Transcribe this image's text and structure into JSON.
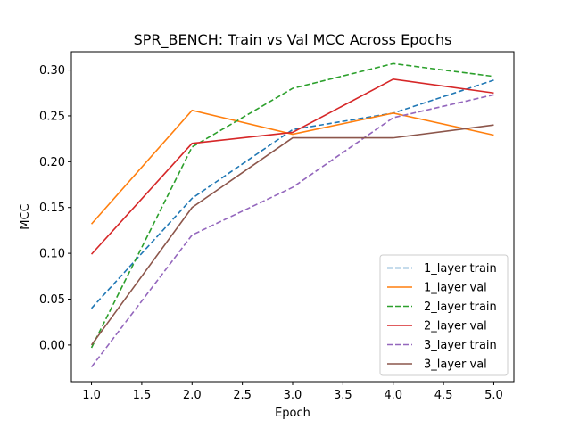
{
  "chart_data": {
    "type": "line",
    "title": "SPR_BENCH: Train vs Val MCC Across Epochs",
    "xlabel": "Epoch",
    "ylabel": "MCC",
    "x": [
      1,
      2,
      3,
      4,
      5
    ],
    "xlim": [
      0.8,
      5.2
    ],
    "ylim": [
      -0.04,
      0.32
    ],
    "xticks": [
      "1.0",
      "1.5",
      "2.0",
      "2.5",
      "3.0",
      "3.5",
      "4.0",
      "4.5",
      "5.0"
    ],
    "yticks": [
      "0.00",
      "0.05",
      "0.10",
      "0.15",
      "0.20",
      "0.25",
      "0.30"
    ],
    "grid": false,
    "legend_position": "lower-right",
    "series": [
      {
        "name": "1_layer train",
        "color": "#1f77b4",
        "dash": true,
        "values": [
          0.04,
          0.16,
          0.235,
          0.253,
          0.289
        ]
      },
      {
        "name": "1_layer val",
        "color": "#ff7f0e",
        "dash": false,
        "values": [
          0.132,
          0.256,
          0.23,
          0.253,
          0.229
        ]
      },
      {
        "name": "2_layer train",
        "color": "#2ca02c",
        "dash": true,
        "values": [
          -0.003,
          0.216,
          0.28,
          0.307,
          0.293
        ]
      },
      {
        "name": "2_layer val",
        "color": "#d62728",
        "dash": false,
        "values": [
          0.099,
          0.22,
          0.232,
          0.29,
          0.275
        ]
      },
      {
        "name": "3_layer train",
        "color": "#9467bd",
        "dash": true,
        "values": [
          -0.024,
          0.12,
          0.172,
          0.248,
          0.273
        ]
      },
      {
        "name": "3_layer val",
        "color": "#8c564b",
        "dash": false,
        "values": [
          0.0,
          0.15,
          0.226,
          0.226,
          0.24
        ]
      }
    ]
  }
}
